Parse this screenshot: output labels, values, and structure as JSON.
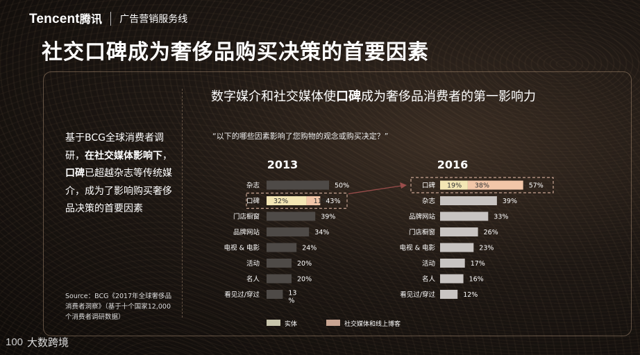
{
  "header": {
    "brand": "Tencent",
    "brand_cn": "腾讯",
    "sub": "广告营销服务线"
  },
  "title": "社交口碑成为奢侈品购买决策的首要因素",
  "subtitle": {
    "pre": "数字媒介和社交媒体使",
    "bold": "口碑",
    "post": "成为奢侈品消费者的第一影响力"
  },
  "question": "“以下的哪些因素影响了您购物的观念或购买决定？”",
  "side_text": {
    "p1": "基于BCG全球消费者调研，",
    "b1": "在社交媒体影响下",
    "p2": "，",
    "b2": "口碑",
    "p3": "已超越杂志等传统媒介，成为了影响购买奢侈品决策的首要因素"
  },
  "source": "Source：BCG《2017年全球奢侈品消费者洞察》（基于十个国家12,000个消费者调研数据）",
  "colors": {
    "gray": "#4e4a47",
    "light_gray": "#c8c4c2",
    "beige": "#f3e6b4",
    "peach": "#f2c6a8",
    "highlight_border": "#c9a593",
    "arrow": "#9a4d4b"
  },
  "legend": [
    {
      "label": "实体",
      "color": "#c9c6ad"
    },
    {
      "label": "社交媒体和线上博客",
      "color": "#c9a593"
    }
  ],
  "watermark": {
    "mark": "100",
    "text": "大数跨境"
  },
  "chart_data": [
    {
      "type": "bar",
      "title": "2013",
      "categories": [
        "杂志",
        "口碑",
        "门店橱窗",
        "品牌网站",
        "电视 & 电影",
        "活动",
        "名人",
        "看见过/穿过"
      ],
      "values": [
        50,
        43,
        39,
        34,
        24,
        20,
        20,
        13
      ],
      "value_labels": [
        "50%",
        "43%",
        "39%",
        "34%",
        "24%",
        "20%",
        "20%",
        "13\n%"
      ],
      "breakdown": {
        "category": "口碑",
        "segments": [
          {
            "value": 32,
            "label": "32%"
          },
          {
            "value": 11,
            "label": "11%"
          }
        ]
      },
      "highlight": "口碑"
    },
    {
      "type": "bar",
      "title": "2016",
      "categories": [
        "口碑",
        "杂志",
        "品牌网站",
        "门店橱窗",
        "电视 & 电影",
        "活动",
        "名人",
        "看见过/穿过"
      ],
      "values": [
        57,
        39,
        33,
        26,
        23,
        17,
        16,
        12
      ],
      "value_labels": [
        "57%",
        "39%",
        "33%",
        "26%",
        "23%",
        "17%",
        "16%",
        "12%"
      ],
      "breakdown": {
        "category": "口碑",
        "segments": [
          {
            "value": 19,
            "label": "19%"
          },
          {
            "value": 38,
            "label": "38%"
          }
        ]
      },
      "highlight": "口碑"
    }
  ]
}
